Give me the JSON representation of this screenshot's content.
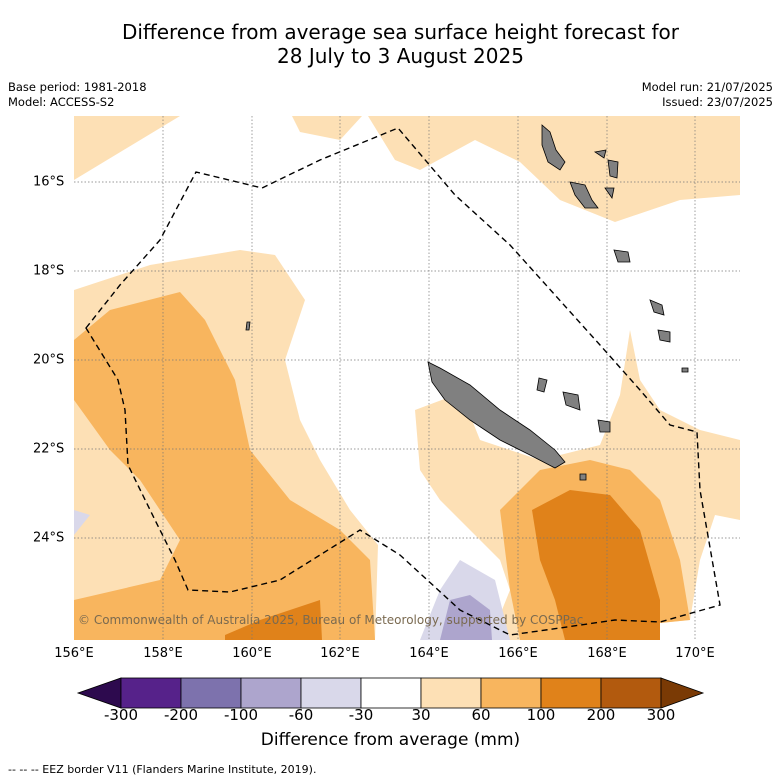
{
  "title": "Difference from average sea surface height forecast for",
  "subtitle": "28 July to 3 August 2025",
  "meta_left": [
    "Base period: 1981-2018",
    "Model: ACCESS-S2"
  ],
  "meta_right": [
    "Model run: 21/07/2025",
    "Issued: 23/07/2025"
  ],
  "credit": "© Commonwealth of Australia 2025, Bureau of Meteorology, supported by COSPPac",
  "lon_ticks": [
    "156°E",
    "158°E",
    "160°E",
    "162°E",
    "164°E",
    "166°E",
    "168°E",
    "170°E"
  ],
  "lat_ticks": [
    "16°S",
    "18°S",
    "20°S",
    "22°S",
    "24°S"
  ],
  "colorbar": {
    "labels": [
      "-300",
      "-200",
      "-100",
      "-60",
      "-30",
      "30",
      "60",
      "100",
      "200",
      "300"
    ],
    "colors": [
      "#2d0a4e",
      "#56228a",
      "#7d72ad",
      "#ada5cd",
      "#d9d8ea",
      "#ffffff",
      "#fde0b5",
      "#f8b55e",
      "#e0821a",
      "#b25a0e",
      "#7a3a05"
    ],
    "title": "Difference from average (mm)"
  },
  "footer": "-- -- -- EEZ border V11 (Flanders Marine Institute, 2019).",
  "colors": {
    "land": "#808080",
    "grid": "#777777"
  }
}
